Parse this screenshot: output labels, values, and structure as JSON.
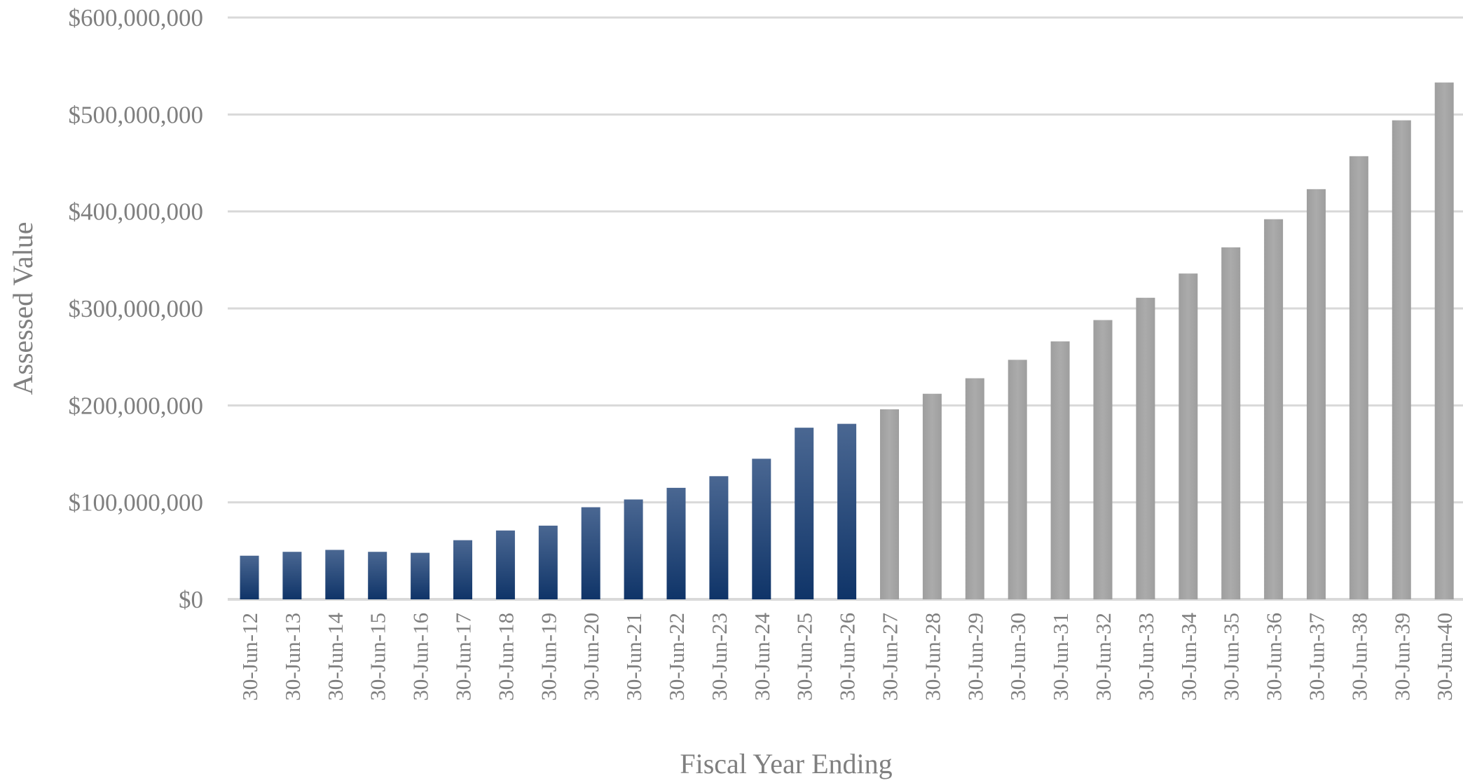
{
  "chart_data": {
    "type": "bar",
    "title": "",
    "xlabel": "Fiscal Year Ending",
    "ylabel": "Assessed Value",
    "ylim": [
      0,
      600000000
    ],
    "y_ticks": [
      {
        "value": 0,
        "label": "$0"
      },
      {
        "value": 100000000,
        "label": "$100,000,000"
      },
      {
        "value": 200000000,
        "label": "$200,000,000"
      },
      {
        "value": 300000000,
        "label": "$300,000,000"
      },
      {
        "value": 400000000,
        "label": "$400,000,000"
      },
      {
        "value": 500000000,
        "label": "$500,000,000"
      },
      {
        "value": 600000000,
        "label": "$600,000,000"
      }
    ],
    "grid": true,
    "legend": "none",
    "categories": [
      "30-Jun-12",
      "30-Jun-13",
      "30-Jun-14",
      "30-Jun-15",
      "30-Jun-16",
      "30-Jun-17",
      "30-Jun-18",
      "30-Jun-19",
      "30-Jun-20",
      "30-Jun-21",
      "30-Jun-22",
      "30-Jun-23",
      "30-Jun-24",
      "30-Jun-25",
      "30-Jun-26",
      "30-Jun-27",
      "30-Jun-28",
      "30-Jun-29",
      "30-Jun-30",
      "30-Jun-31",
      "30-Jun-32",
      "30-Jun-33",
      "30-Jun-34",
      "30-Jun-35",
      "30-Jun-36",
      "30-Jun-37",
      "30-Jun-38",
      "30-Jun-39",
      "30-Jun-40"
    ],
    "values": [
      45000000,
      49000000,
      51000000,
      49000000,
      48000000,
      61000000,
      71000000,
      76000000,
      95000000,
      103000000,
      115000000,
      127000000,
      145000000,
      177000000,
      181000000,
      196000000,
      212000000,
      228000000,
      247000000,
      266000000,
      288000000,
      311000000,
      336000000,
      363000000,
      392000000,
      423000000,
      457000000,
      494000000,
      533000000
    ],
    "bar_colors": [
      "#123a6e",
      "#123a6e",
      "#123a6e",
      "#123a6e",
      "#123a6e",
      "#123a6e",
      "#123a6e",
      "#123a6e",
      "#123a6e",
      "#123a6e",
      "#123a6e",
      "#123a6e",
      "#123a6e",
      "#123a6e",
      "#123a6e",
      "#a6a6a6",
      "#a6a6a6",
      "#a6a6a6",
      "#a6a6a6",
      "#a6a6a6",
      "#a6a6a6",
      "#a6a6a6",
      "#a6a6a6",
      "#a6a6a6",
      "#a6a6a6",
      "#a6a6a6",
      "#a6a6a6",
      "#a6a6a6",
      "#a6a6a6"
    ],
    "colors": {
      "historical": "#123a6e",
      "projected": "#a6a6a6",
      "grid": "#d9d9d9",
      "text": "#7f7f7f"
    }
  }
}
